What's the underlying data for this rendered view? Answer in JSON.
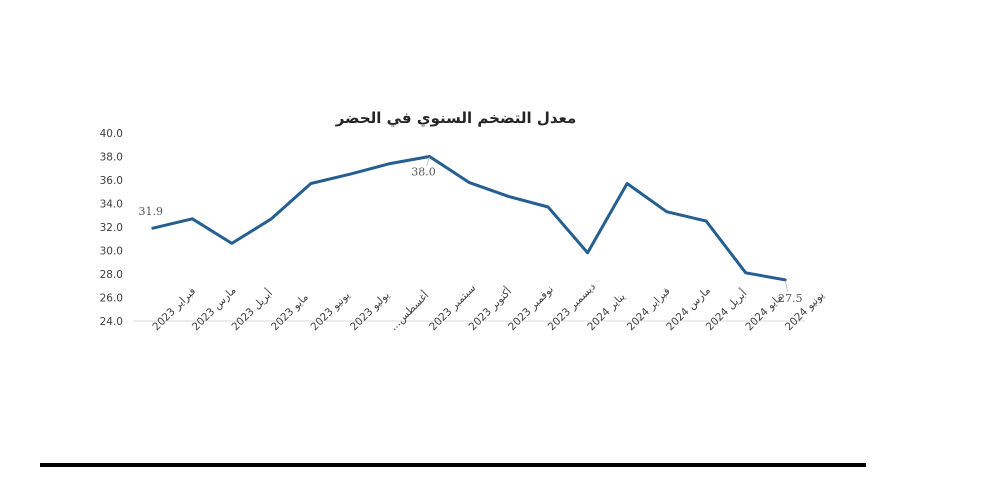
{
  "chart_data": {
    "type": "line",
    "title": "معدل التضخم السنوي في الحضر",
    "xlabel": "",
    "ylabel": "",
    "ylim": [
      24,
      40
    ],
    "y_ticks": [
      "40.0",
      "38.0",
      "36.0",
      "34.0",
      "32.0",
      "30.0",
      "28.0",
      "26.0",
      "24.0"
    ],
    "grid": false,
    "legend": "none",
    "categories": [
      "فبراير 2023",
      "مارس 2023",
      "أبريل 2023",
      "مايو 2023",
      "يونيو 2023",
      "يوليو 2023",
      "أغسطس...",
      "سبتمبر 2023",
      "أكتوبر 2023",
      "نوفمبر 2023",
      "ديسمبر 2023",
      "يناير 2024",
      "فبراير 2024",
      "مارس 2024",
      "أبريل 2024",
      "مايو 2024",
      "يونيو 2024"
    ],
    "series": [
      {
        "values": [
          31.9,
          32.7,
          30.6,
          32.7,
          35.7,
          36.5,
          37.4,
          38.0,
          35.8,
          34.6,
          33.7,
          29.8,
          35.7,
          33.3,
          32.5,
          28.1,
          27.5
        ],
        "color": "#255E91"
      }
    ],
    "data_labels": [
      {
        "index": 0,
        "text": "31.9"
      },
      {
        "index": 7,
        "text": "38.0"
      },
      {
        "index": 16,
        "text": "27.5"
      }
    ]
  }
}
